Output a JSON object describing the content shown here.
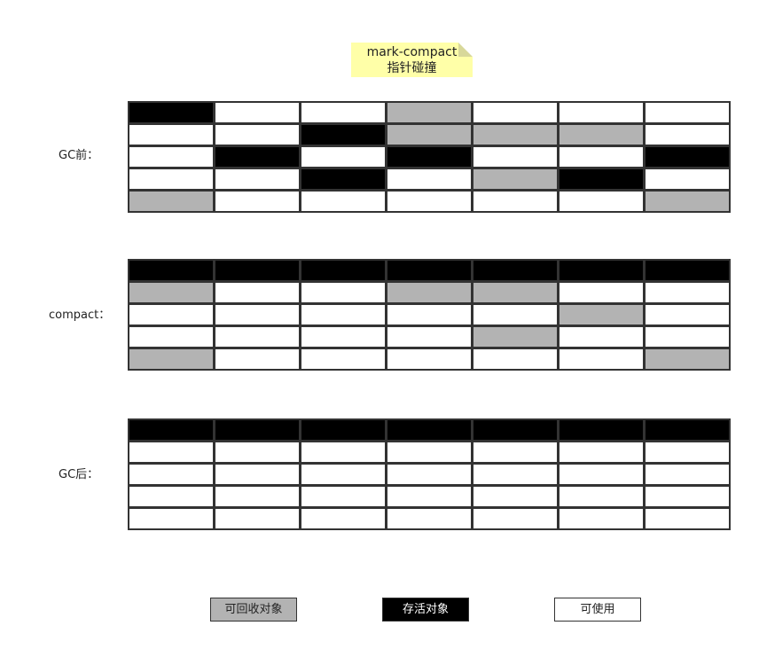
{
  "colors": {
    "free": "#ffffff",
    "live": "#000000",
    "garbage": "#b3b3b3",
    "note": "#ffffa8"
  },
  "note": {
    "line1": "mark-compact",
    "line2": "指针碰撞"
  },
  "stages": [
    {
      "label": "GC前：",
      "cells": [
        [
          "live",
          "free",
          "free",
          "garbage",
          "free",
          "free",
          "free"
        ],
        [
          "free",
          "free",
          "live",
          "garbage",
          "garbage",
          "garbage",
          "free"
        ],
        [
          "free",
          "live",
          "free",
          "live",
          "free",
          "free",
          "live"
        ],
        [
          "free",
          "free",
          "live",
          "free",
          "garbage",
          "live",
          "free"
        ],
        [
          "garbage",
          "free",
          "free",
          "free",
          "free",
          "free",
          "garbage"
        ]
      ]
    },
    {
      "label": "compact：",
      "cells": [
        [
          "live",
          "live",
          "live",
          "live",
          "live",
          "live",
          "live"
        ],
        [
          "garbage",
          "free",
          "free",
          "garbage",
          "garbage",
          "free",
          "free"
        ],
        [
          "free",
          "free",
          "free",
          "free",
          "free",
          "garbage",
          "free"
        ],
        [
          "free",
          "free",
          "free",
          "free",
          "garbage",
          "free",
          "free"
        ],
        [
          "garbage",
          "free",
          "free",
          "free",
          "free",
          "free",
          "garbage"
        ]
      ]
    },
    {
      "label": "GC后：",
      "cells": [
        [
          "live",
          "live",
          "live",
          "live",
          "live",
          "live",
          "live"
        ],
        [
          "free",
          "free",
          "free",
          "free",
          "free",
          "free",
          "free"
        ],
        [
          "free",
          "free",
          "free",
          "free",
          "free",
          "free",
          "free"
        ],
        [
          "free",
          "free",
          "free",
          "free",
          "free",
          "free",
          "free"
        ],
        [
          "free",
          "free",
          "free",
          "free",
          "free",
          "free",
          "free"
        ]
      ]
    }
  ],
  "legend": {
    "garbage": "可回收对象",
    "live": "存活对象",
    "free": "可使用"
  }
}
